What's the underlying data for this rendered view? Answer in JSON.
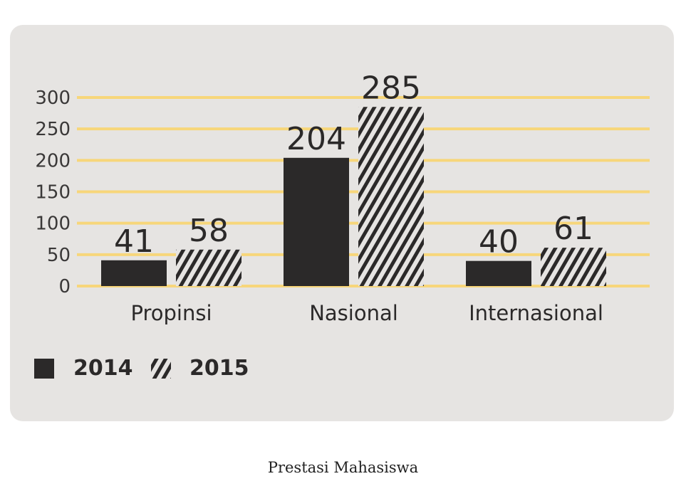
{
  "chart_data": {
    "type": "bar",
    "categories": [
      "Propinsi",
      "Nasional",
      "Internasional"
    ],
    "series": [
      {
        "name": "2014",
        "values": [
          41,
          204,
          40
        ],
        "pattern": "solid"
      },
      {
        "name": "2015",
        "values": [
          58,
          285,
          61
        ],
        "pattern": "hatched"
      }
    ],
    "y_ticks": [
      "0",
      "50",
      "100",
      "150",
      "200",
      "250",
      "300"
    ],
    "ylim": [
      0,
      300
    ],
    "grid": true,
    "legend_position": "bottom-left",
    "colors": {
      "background": "#e6e4e2",
      "bar": "#2b2929",
      "gridline": "#f7d67a"
    }
  },
  "caption": "Prestasi Mahasiswa"
}
